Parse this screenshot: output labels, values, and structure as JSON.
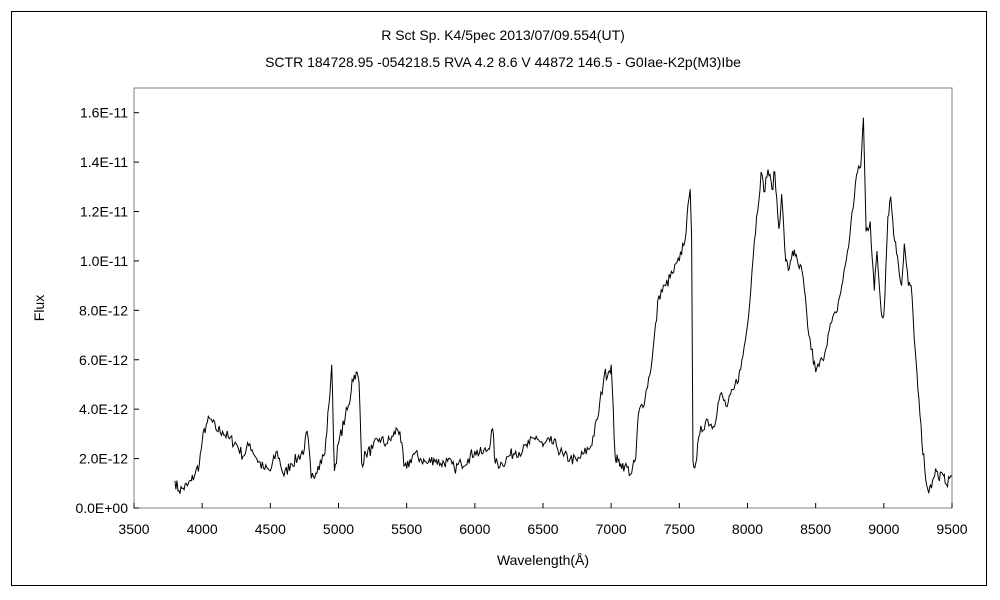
{
  "chart_data": {
    "type": "line",
    "title": "R Sct    Sp. K4/5pec    2013/07/09.554(UT)",
    "subtitle": "SCTR 184728.95 -054218.5 RVA 4.2 8.6 V 44872 146.5 - G0Iae-K2p(M3)Ibe",
    "xlabel": "Wavelength(Å)",
    "ylabel": "Flux",
    "xlim": [
      3500,
      9500
    ],
    "ylim": [
      0,
      1.7e-11
    ],
    "x_ticks": [
      3500,
      4000,
      4500,
      5000,
      5500,
      6000,
      6500,
      7000,
      7500,
      8000,
      8500,
      9000,
      9500
    ],
    "x_tick_labels": [
      "3500",
      "4000",
      "4500",
      "5000",
      "5500",
      "6000",
      "6500",
      "7000",
      "7500",
      "8000",
      "8500",
      "9000",
      "9500"
    ],
    "y_ticks": [
      0,
      2e-12,
      4e-12,
      6e-12,
      8e-12,
      1e-11,
      1.2e-11,
      1.4e-11,
      1.6e-11
    ],
    "y_tick_labels": [
      "0.0E+00",
      "2.0E-12",
      "4.0E-12",
      "6.0E-12",
      "8.0E-12",
      "1.0E-11",
      "1.2E-11",
      "1.4E-11",
      "1.6E-11"
    ],
    "grid": false,
    "legend": "none",
    "line_color": "#000000",
    "series": [
      {
        "x": [
          3800,
          3830,
          3860,
          3890,
          3920,
          3950,
          3980,
          4000,
          4030,
          4060,
          4100,
          4150,
          4200,
          4250,
          4300,
          4350,
          4400,
          4450,
          4500,
          4550,
          4600,
          4650,
          4700,
          4750,
          4770,
          4800,
          4850,
          4900,
          4930,
          4950,
          4970,
          5000,
          5050,
          5080,
          5100,
          5130,
          5150,
          5170,
          5200,
          5250,
          5300,
          5350,
          5400,
          5430,
          5450,
          5480,
          5500,
          5550,
          5600,
          5650,
          5700,
          5750,
          5800,
          5850,
          5900,
          5950,
          6000,
          6050,
          6100,
          6130,
          6150,
          6200,
          6250,
          6300,
          6350,
          6400,
          6450,
          6500,
          6550,
          6600,
          6650,
          6700,
          6750,
          6800,
          6850,
          6900,
          6950,
          6980,
          7000,
          7030,
          7050,
          7070,
          7100,
          7150,
          7180,
          7200,
          7250,
          7300,
          7350,
          7400,
          7450,
          7500,
          7550,
          7570,
          7580,
          7590,
          7600,
          7620,
          7650,
          7700,
          7750,
          7800,
          7850,
          7900,
          7950,
          8000,
          8050,
          8100,
          8120,
          8150,
          8180,
          8200,
          8230,
          8250,
          8280,
          8300,
          8330,
          8350,
          8380,
          8400,
          8450,
          8500,
          8550,
          8600,
          8650,
          8700,
          8750,
          8800,
          8830,
          8850,
          8870,
          8900,
          8930,
          8950,
          8980,
          9000,
          9030,
          9050,
          9080,
          9100,
          9130,
          9150,
          9180,
          9200,
          9230,
          9250,
          9280,
          9300,
          9330,
          9350,
          9380,
          9400,
          9430,
          9450,
          9500
        ],
        "y": [
          1.1e-12,
          7e-13,
          8e-13,
          9e-13,
          1.1e-12,
          1.4e-12,
          1.8e-12,
          2.7e-12,
          3.4e-12,
          3.6e-12,
          3.2e-12,
          3.1e-12,
          2.8e-12,
          2.6e-12,
          2.1e-12,
          2.6e-12,
          2e-12,
          1.6e-12,
          1.5e-12,
          2.3e-12,
          1.3e-12,
          1.8e-12,
          2e-12,
          2.4e-12,
          3.1e-12,
          1.2e-12,
          1.7e-12,
          2.2e-12,
          4.2e-12,
          5.8e-12,
          1.5e-12,
          2.6e-12,
          3.7e-12,
          4.2e-12,
          5.2e-12,
          5.5e-12,
          5.1e-12,
          1.8e-12,
          2.2e-12,
          2.4e-12,
          2.8e-12,
          2.6e-12,
          2.9e-12,
          3.2e-12,
          3.1e-12,
          1.7e-12,
          1.6e-12,
          2.2e-12,
          2e-12,
          1.8e-12,
          2e-12,
          1.8e-12,
          1.9e-12,
          1.6e-12,
          1.8e-12,
          2e-12,
          2.3e-12,
          2.2e-12,
          2.4e-12,
          3.2e-12,
          1.8e-12,
          1.8e-12,
          2.1e-12,
          2.3e-12,
          2.3e-12,
          2.6e-12,
          2.9e-12,
          2.5e-12,
          2.7e-12,
          2.5e-12,
          2.1e-12,
          2e-12,
          1.9e-12,
          2.2e-12,
          2.5e-12,
          3.6e-12,
          5.4e-12,
          5.5e-12,
          5.8e-12,
          2e-12,
          1.9e-12,
          1.8e-12,
          1.7e-12,
          1.4e-12,
          2e-12,
          3.8e-12,
          4.5e-12,
          6e-12,
          8.6e-12,
          9e-12,
          9.5e-12,
          1e-11,
          1.12e-11,
          1.25e-11,
          1.29e-11,
          1.1e-11,
          1.9e-12,
          1.8e-12,
          3e-12,
          3.6e-12,
          3.3e-12,
          4.6e-12,
          4.1e-12,
          4.8e-12,
          5.6e-12,
          7.4e-12,
          1.08e-11,
          1.36e-11,
          1.28e-11,
          1.37e-11,
          1.29e-11,
          1.36e-11,
          1.13e-11,
          1.27e-11,
          1e-11,
          9.6e-12,
          1.04e-11,
          1.02e-11,
          9.7e-12,
          9.6e-12,
          7e-12,
          5.5e-12,
          6e-12,
          7.2e-12,
          7.9e-12,
          9.2e-12,
          1.1e-11,
          1.35e-11,
          1.38e-11,
          1.58e-11,
          1.12e-11,
          1.16e-11,
          8.8e-12,
          1.04e-11,
          8e-12,
          7.8e-12,
          1.18e-11,
          1.26e-11,
          1.08e-11,
          1.02e-11,
          9e-12,
          1.07e-11,
          9e-12,
          9e-12,
          6.4e-12,
          4.8e-12,
          2.6e-12,
          1.6e-12,
          6e-13,
          8e-13,
          1.6e-12,
          1.2e-12,
          1.4e-12,
          1e-12,
          1.3e-12
        ]
      }
    ]
  }
}
